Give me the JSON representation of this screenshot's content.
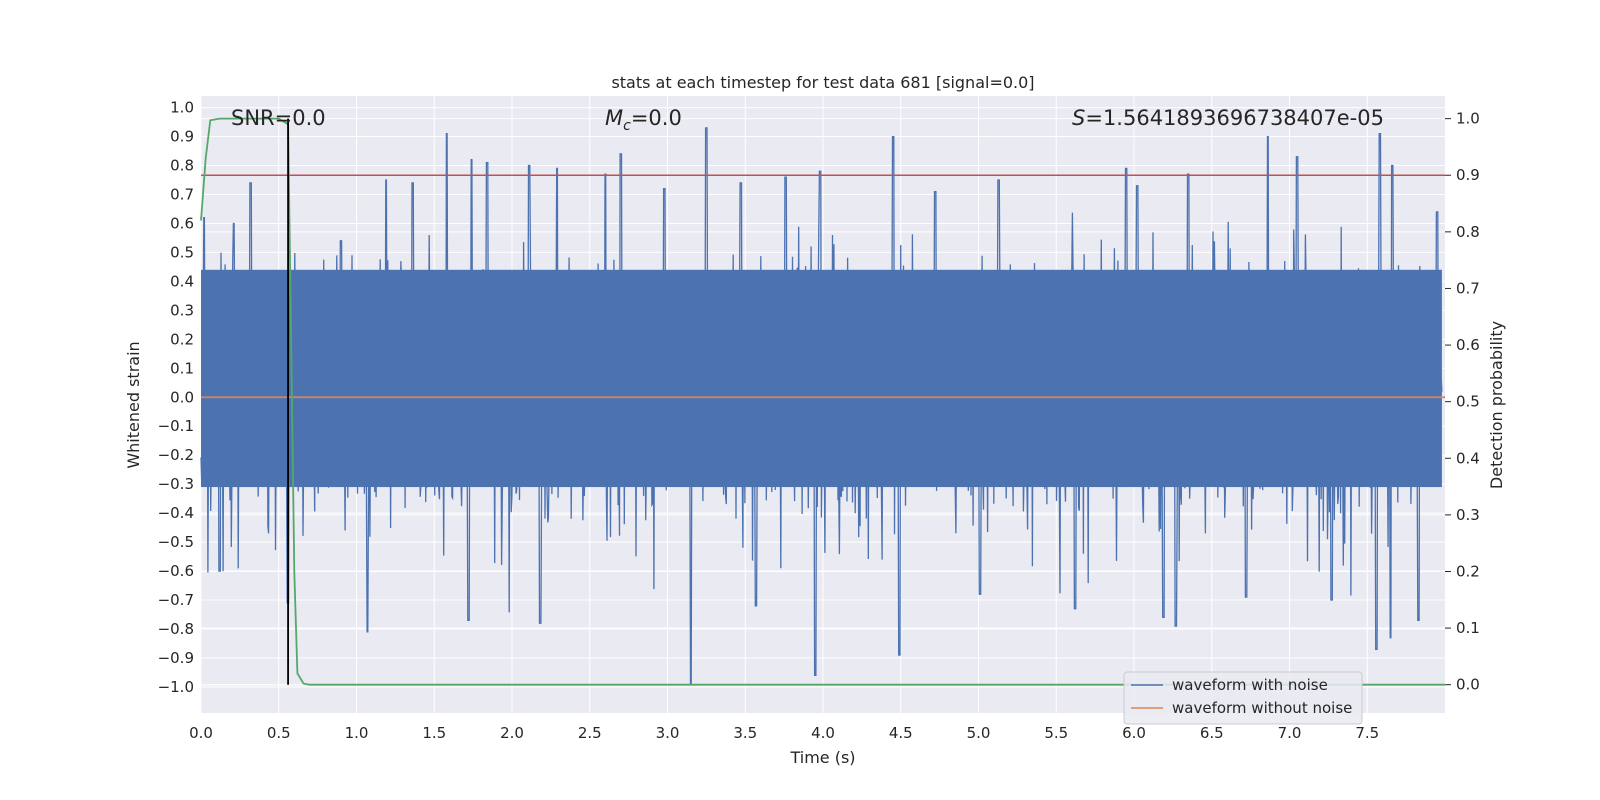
{
  "chart_data": {
    "type": "line",
    "title": "stats at each timestep for test data 681 [signal=0.0]",
    "xlabel": "Time (s)",
    "ylabel": "Whitened strain",
    "y2label": "Detection probability",
    "xlim": [
      0.0,
      8.0
    ],
    "ylim": [
      -1.09,
      1.04
    ],
    "y2lim": [
      -0.05,
      1.04
    ],
    "x_ticks": [
      "0.0",
      "0.5",
      "1.0",
      "1.5",
      "2.0",
      "2.5",
      "3.0",
      "3.5",
      "4.0",
      "4.5",
      "5.0",
      "5.5",
      "6.0",
      "6.5",
      "7.0",
      "7.5"
    ],
    "y_ticks": [
      "1.0",
      "0.9",
      "0.8",
      "0.7",
      "0.6",
      "0.5",
      "0.4",
      "0.3",
      "0.2",
      "0.1",
      "0.0",
      "−0.1",
      "−0.2",
      "−0.3",
      "−0.4",
      "−0.5",
      "−0.6",
      "−0.7",
      "−0.8",
      "−0.9",
      "−1.0"
    ],
    "y2_ticks": [
      "1.0",
      "0.9",
      "0.8",
      "0.7",
      "0.6",
      "0.5",
      "0.4",
      "0.3",
      "0.2",
      "0.1",
      "0.0"
    ],
    "annotations": {
      "snr": "SNR=0.0",
      "mc_symbol": "M",
      "mc_sub": "c",
      "mc_value": "=0.0",
      "s_symbol": "S",
      "s_value": "=1.5641893696738407e-05"
    },
    "legend": {
      "position": "lower-right",
      "entries": [
        "waveform with noise",
        "waveform without noise"
      ]
    },
    "series": [
      {
        "name": "waveform with noise",
        "color": "#4c72b0",
        "axis": "left",
        "kind": "noise-envelope",
        "x_range": [
          0.0,
          7.98
        ],
        "core_band": [
          -0.31,
          0.44
        ],
        "upper_peaks": [
          [
            0.02,
            0.62
          ],
          [
            0.21,
            0.6
          ],
          [
            0.32,
            0.74
          ],
          [
            0.9,
            0.54
          ],
          [
            1.19,
            0.75
          ],
          [
            1.36,
            0.74
          ],
          [
            1.58,
            0.91
          ],
          [
            1.74,
            0.82
          ],
          [
            1.84,
            0.81
          ],
          [
            2.11,
            0.8
          ],
          [
            2.29,
            0.79
          ],
          [
            2.6,
            0.77
          ],
          [
            2.7,
            0.84
          ],
          [
            2.98,
            0.72
          ],
          [
            3.25,
            0.93
          ],
          [
            3.47,
            0.74
          ],
          [
            3.76,
            0.76
          ],
          [
            3.98,
            0.78
          ],
          [
            4.45,
            0.9
          ],
          [
            4.72,
            0.71
          ],
          [
            5.13,
            0.75
          ],
          [
            5.95,
            0.79
          ],
          [
            6.02,
            0.73
          ],
          [
            6.35,
            0.77
          ],
          [
            6.86,
            0.9
          ],
          [
            7.05,
            0.83
          ],
          [
            7.58,
            0.91
          ],
          [
            7.66,
            0.8
          ],
          [
            7.95,
            0.64
          ]
        ],
        "lower_peaks": [
          [
            0.12,
            -0.6
          ],
          [
            0.56,
            -0.71
          ],
          [
            1.07,
            -0.81
          ],
          [
            1.72,
            -0.77
          ],
          [
            2.18,
            -0.78
          ],
          [
            2.29,
            -0.78
          ],
          [
            3.15,
            -1.0
          ],
          [
            3.57,
            -0.72
          ],
          [
            3.95,
            -0.96
          ],
          [
            4.49,
            -0.89
          ],
          [
            5.01,
            -0.68
          ],
          [
            5.62,
            -0.73
          ],
          [
            6.19,
            -0.76
          ],
          [
            6.27,
            -0.79
          ],
          [
            6.72,
            -0.69
          ],
          [
            7.27,
            -0.7
          ],
          [
            7.56,
            -0.87
          ],
          [
            7.65,
            -0.83
          ],
          [
            7.83,
            -0.77
          ]
        ]
      },
      {
        "name": "waveform without noise",
        "color": "#dd8452",
        "axis": "left",
        "x": [
          0.0,
          8.0
        ],
        "y": [
          0.0,
          0.0
        ]
      },
      {
        "name": "detection probability",
        "color": "#55a868",
        "axis": "right",
        "x": [
          0.0,
          0.03,
          0.06,
          0.12,
          0.5,
          0.56,
          0.58,
          0.6,
          0.62,
          0.66,
          0.7,
          8.0
        ],
        "y": [
          0.82,
          0.93,
          0.997,
          1.0,
          1.0,
          0.99,
          0.6,
          0.2,
          0.02,
          0.002,
          0.0,
          0.0
        ]
      }
    ],
    "threshold": {
      "axis": "right",
      "value": 0.9,
      "color": "#c44e52"
    },
    "marker": {
      "x": 0.56,
      "color": "#000000"
    }
  }
}
